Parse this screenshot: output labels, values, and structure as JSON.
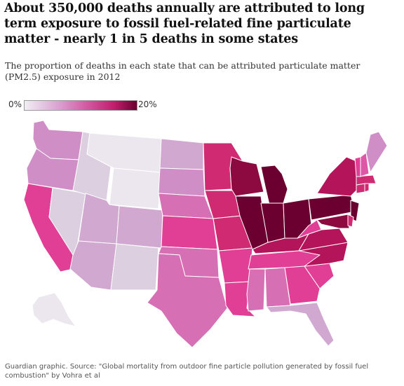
{
  "title": "About 350,000 deaths annually are attributed to long term exposure to fossil fuel-related fine particulate matter - nearly 1 in 5 deaths in some states",
  "subtitle": "The proportion of deaths in each state that can be attributed particulate matter (PM2.5) exposure in 2012",
  "legend": {
    "min_label": "0%",
    "max_label": "20%"
  },
  "colors": {
    "lightest": "#ece6ef",
    "very_light": "#dcd0e0",
    "light": "#d0a8d0",
    "lilac": "#d08ec6",
    "mid": "#d76fb4",
    "pink": "#dc58a6",
    "hot": "#e13f96",
    "crimson": "#cf2a72",
    "deep": "#b3145a",
    "dark": "#8c0a3f",
    "darkest": "#6b0030"
  },
  "source": "Guardian graphic. Source: \"Global mortality from outdoor fine particle pollution generated by fossil fuel combustion\" by Vohra et al"
}
